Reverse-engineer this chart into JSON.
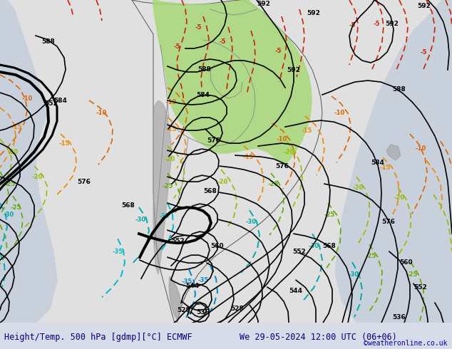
{
  "title_left": "Height/Temp. 500 hPa [gdmp][°C] ECMWF",
  "title_right": "We 29-05-2024 12:00 UTC (06+06)",
  "copyright": "©weatheronline.co.uk",
  "figsize": [
    6.34,
    4.9
  ],
  "dpi": 100,
  "land_color": "#e0e0e0",
  "ocean_color": "#c8d0dc",
  "green_color": "#a8d878",
  "gray_color": "#a0a0a0",
  "title_color": "#000080",
  "bar_color": "#d8dce8"
}
